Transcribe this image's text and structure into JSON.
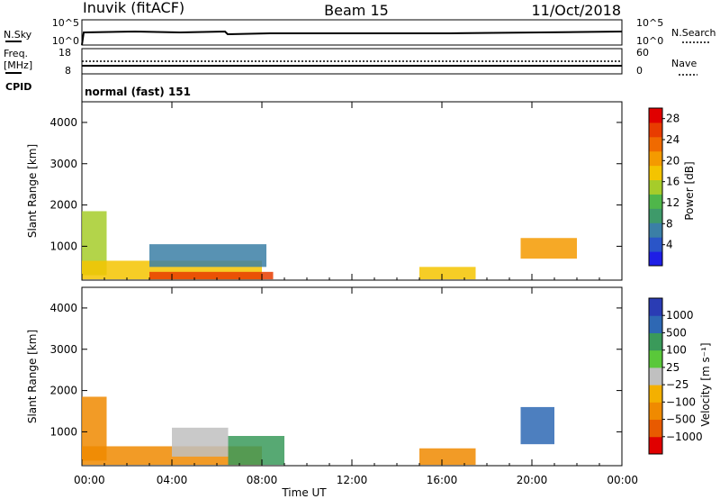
{
  "header": {
    "station": "Inuvik (fitACF)",
    "beam": "Beam 15",
    "date": "11/Oct/2018"
  },
  "top_panels": {
    "nsky_label": "N.Sky",
    "nsky_ticks": [
      "10^5",
      "10^0"
    ],
    "nsearch_label": "N.Search",
    "nsearch_ticks": [
      "10^5",
      "10^0"
    ],
    "freq_label_line1": "Freq.",
    "freq_label_line2": "[MHz]",
    "freq_ticks": [
      "18",
      "8"
    ],
    "nave_label": "Nave",
    "nave_ticks": [
      "60",
      "0"
    ],
    "cpid_label": "CPID",
    "cpid_text": "normal (fast) 151"
  },
  "chart_data": [
    {
      "type": "heatmap",
      "panel": "power",
      "ylabel": "Slant Range [km]",
      "ylim": [
        180,
        4500
      ],
      "yticks": [
        "1000",
        "2000",
        "3000",
        "4000"
      ],
      "ytick_values": [
        1000,
        2000,
        3000,
        4000
      ],
      "colorbar": {
        "label": "Power [dB]",
        "ticks": [
          "4",
          "8",
          "12",
          "16",
          "20",
          "24",
          "28"
        ],
        "range": [
          0,
          30
        ],
        "colors": [
          "#1e1ee6",
          "#2a55c8",
          "#3b7fa6",
          "#3e9a6a",
          "#4fb64a",
          "#a6cc2a",
          "#f4c400",
          "#f49a00",
          "#f06a00",
          "#e83c00",
          "#e00000"
        ]
      },
      "echo_regions": [
        {
          "t0": 0.0,
          "t1": 1.1,
          "r0": 300,
          "r1": 1850,
          "power": 14
        },
        {
          "t0": 0.0,
          "t1": 8.0,
          "r0": 200,
          "r1": 650,
          "power": 18
        },
        {
          "t0": 3.0,
          "t1": 8.5,
          "r0": 200,
          "r1": 380,
          "power": 26
        },
        {
          "t0": 3.0,
          "t1": 8.2,
          "r0": 500,
          "r1": 1050,
          "power": 8
        },
        {
          "t0": 15.0,
          "t1": 17.5,
          "r0": 200,
          "r1": 500,
          "power": 18
        },
        {
          "t0": 19.5,
          "t1": 22.0,
          "r0": 700,
          "r1": 1200,
          "power": 20
        }
      ]
    },
    {
      "type": "heatmap",
      "panel": "velocity",
      "ylabel": "Slant Range [km]",
      "xlabel": "Time UT",
      "ylim": [
        180,
        4500
      ],
      "yticks": [
        "1000",
        "2000",
        "3000",
        "4000"
      ],
      "ytick_values": [
        1000,
        2000,
        3000,
        4000
      ],
      "xlim": [
        0,
        24
      ],
      "xticks": [
        "00:00",
        "04:00",
        "08:00",
        "12:00",
        "16:00",
        "20:00",
        "00:00"
      ],
      "xtick_values": [
        0,
        4,
        8,
        12,
        16,
        20,
        24
      ],
      "colorbar": {
        "label": "Velocity [m s⁻¹]",
        "ticks": [
          "1000",
          "500",
          "100",
          "25",
          "−25",
          "−100",
          "−500",
          "−1000"
        ],
        "colors": [
          "#2a3cb4",
          "#2e68b4",
          "#3a9a5a",
          "#5ac83a",
          "#c0c0c0",
          "#f4b000",
          "#f08a00",
          "#e85a00",
          "#e00000"
        ]
      },
      "echo_regions": [
        {
          "t0": 0.0,
          "t1": 1.1,
          "r0": 300,
          "r1": 1850,
          "velocity": -300
        },
        {
          "t0": 0.0,
          "t1": 8.0,
          "r0": 200,
          "r1": 650,
          "velocity": -150
        },
        {
          "t0": 4.0,
          "t1": 6.5,
          "r0": 400,
          "r1": 1100,
          "velocity": 0
        },
        {
          "t0": 6.5,
          "t1": 9.0,
          "r0": 200,
          "r1": 900,
          "velocity": 100
        },
        {
          "t0": 15.0,
          "t1": 17.5,
          "r0": 200,
          "r1": 600,
          "velocity": -150
        },
        {
          "t0": 19.5,
          "t1": 21.0,
          "r0": 700,
          "r1": 1600,
          "velocity": 800
        }
      ]
    }
  ],
  "colors": {
    "axis": "#000000",
    "background": "#ffffff"
  }
}
